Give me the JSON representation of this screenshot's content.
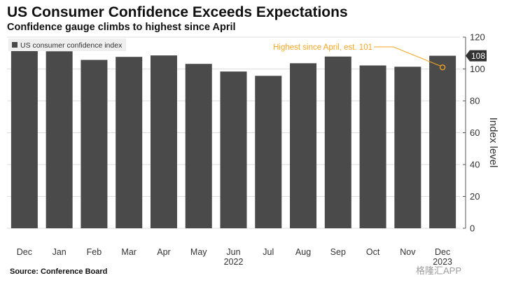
{
  "header": {
    "title": "US Consumer Confidence Exceeds Expectations",
    "subtitle": "Confidence gauge climbs to highest since April"
  },
  "footer": {
    "source": "Source: Conference Board",
    "watermark": "格隆汇APP"
  },
  "colors": {
    "bar": "#4a4a4a",
    "annotation": "#f5a623",
    "grid": "#dddddd",
    "legend_bg": "#efefef",
    "axis_text": "#333333"
  },
  "chart_data": {
    "type": "bar",
    "title": "US Consumer Confidence Exceeds Expectations",
    "subtitle": "Confidence gauge climbs to highest since April",
    "categories": [
      "Dec",
      "Jan",
      "Feb",
      "Mar",
      "Apr",
      "May",
      "Jun",
      "Jul",
      "Aug",
      "Sep",
      "Oct",
      "Nov",
      "Dec"
    ],
    "year_labels": [
      {
        "category_index": 6,
        "label": "2022"
      },
      {
        "category_index": 12,
        "label": "2023"
      }
    ],
    "series": [
      {
        "name": "US consumer confidence index",
        "values": [
          115.2,
          111.1,
          105.7,
          107.6,
          108.5,
          103.2,
          98.4,
          95.7,
          103.6,
          107.8,
          102.2,
          101.4,
          108.3
        ]
      }
    ],
    "ylabel": "Index level",
    "ylim": [
      0,
      120
    ],
    "yticks": [
      0,
      20,
      40,
      60,
      80,
      100,
      120
    ],
    "y_axis_position": "right",
    "grid": true,
    "legend": "top-left",
    "last_value_label": "108",
    "annotation": {
      "text": "Highest since April, est. 101",
      "category_index": 12,
      "value": 101
    },
    "source": "Source: Conference Board"
  }
}
